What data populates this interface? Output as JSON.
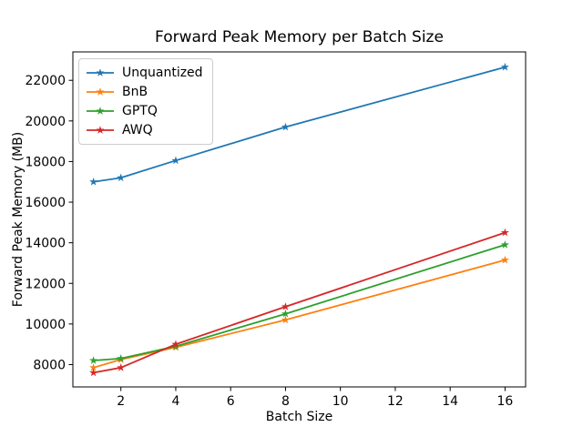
{
  "chart_data": {
    "type": "line",
    "title": "Forward Peak Memory per Batch Size",
    "xlabel": "Batch Size",
    "ylabel": "Forward Peak Memory (MB)",
    "x": [
      1,
      2,
      4,
      8,
      16
    ],
    "series": [
      {
        "name": "Unquantized",
        "color": "#1f77b4",
        "values": [
          17000,
          17200,
          18050,
          19700,
          22650
        ]
      },
      {
        "name": "BnB",
        "color": "#ff7f0e",
        "values": [
          7850,
          8250,
          8850,
          10200,
          13150
        ]
      },
      {
        "name": "GPTQ",
        "color": "#2ca02c",
        "values": [
          8200,
          8300,
          8900,
          10500,
          13900
        ]
      },
      {
        "name": "AWQ",
        "color": "#d62728",
        "values": [
          7600,
          7850,
          9000,
          10850,
          14500
        ]
      }
    ],
    "xticks": [
      2,
      4,
      6,
      8,
      10,
      12,
      14,
      16
    ],
    "yticks": [
      8000,
      10000,
      12000,
      14000,
      16000,
      18000,
      20000,
      22000
    ],
    "xlim": [
      0.25,
      16.75
    ],
    "ylim": [
      6900,
      23400
    ],
    "marker": "star",
    "grid": false,
    "legend_position": "upper-left"
  }
}
